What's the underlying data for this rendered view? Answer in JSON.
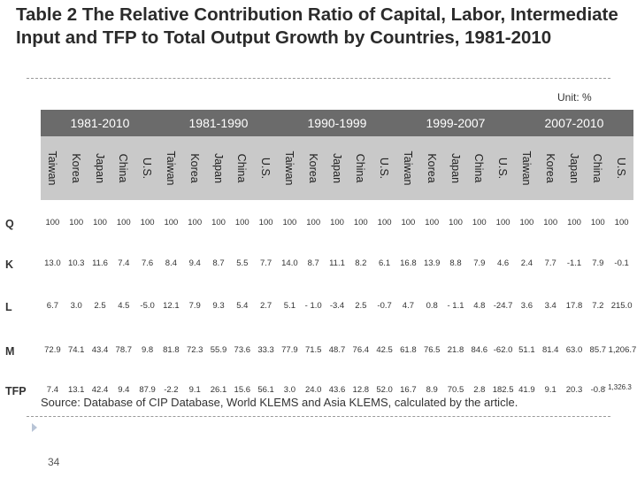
{
  "title": "Table 2 The Relative Contribution Ratio of Capital, Labor, Intermediate Input and TFP to Total Output Growth by Countries, 1981-2010",
  "unit": "Unit: %",
  "periods": [
    "1981-2010",
    "1981-1990",
    "1990-1999",
    "1999-2007",
    "2007-2010"
  ],
  "countries": [
    "Taiwan",
    "Korea",
    "Japan",
    "China",
    "U.S.",
    "Taiwan",
    "Korea",
    "Japan",
    "China",
    "U.S.",
    "Taiwan",
    "Korea",
    "Japan",
    "China",
    "U.S.",
    "Taiwan",
    "Korea",
    "Japan",
    "China",
    "U.S.",
    "Taiwan",
    "Korea",
    "Japan",
    "China",
    "U.S."
  ],
  "rows": [
    {
      "label": "Q",
      "values": [
        "100",
        "100",
        "100",
        "100",
        "100",
        "100",
        "100",
        "100",
        "100",
        "100",
        "100",
        "100",
        "100",
        "100",
        "100",
        "100",
        "100",
        "100",
        "100",
        "100",
        "100",
        "100",
        "100",
        "100",
        "100"
      ]
    },
    {
      "label": "K",
      "values": [
        "13.0",
        "10.3",
        "11.6",
        "7.4",
        "7.6",
        "8.4",
        "9.4",
        "8.7",
        "5.5",
        "7.7",
        "14.0",
        "8.7",
        "11.1",
        "8.2",
        "6.1",
        "16.8",
        "13.9",
        "8.8",
        "7.9",
        "4.6",
        "2.4",
        "7.7",
        "-1.1",
        "7.9",
        "-0.1"
      ]
    },
    {
      "label": "L",
      "values": [
        "6.7",
        "3.0",
        "2.5",
        "4.5",
        "-5.0",
        "12.1",
        "7.9",
        "9.3",
        "5.4",
        "2.7",
        "5.1",
        "- 1.0",
        "-3.4",
        "2.5",
        "-0.7",
        "4.7",
        "0.8",
        "- 1.1",
        "4.8",
        "-24.7",
        "3.6",
        "3.4",
        "17.8",
        "7.2",
        "215.0"
      ]
    },
    {
      "label": "M",
      "values": [
        "72.9",
        "74.1",
        "43.4",
        "78.7",
        "9.8",
        "81.8",
        "72.3",
        "55.9",
        "73.6",
        "33.3",
        "77.9",
        "71.5",
        "48.7",
        "76.4",
        "42.5",
        "61.8",
        "76.5",
        "21.8",
        "84.6",
        "-62.0",
        "51.1",
        "81.4",
        "63.0",
        "85.7",
        "1,206.7"
      ]
    },
    {
      "label": "TFP",
      "values": [
        "7.4",
        "13.1",
        "42.4",
        "9.4",
        "87.9",
        "-2.2",
        "9.1",
        "26.1",
        "15.6",
        "56.1",
        "3.0",
        "24.0",
        "43.6",
        "12.8",
        "52.0",
        "16.7",
        "8.9",
        "70.5",
        "2.8",
        "182.5",
        "41.9",
        "9.1",
        "20.3",
        "-0.8",
        "- 1,326.3"
      ]
    }
  ],
  "source": "Source: Database of CIP Database, World KLEMS and Asia KLEMS, calculated by the article.",
  "page_number": "34"
}
